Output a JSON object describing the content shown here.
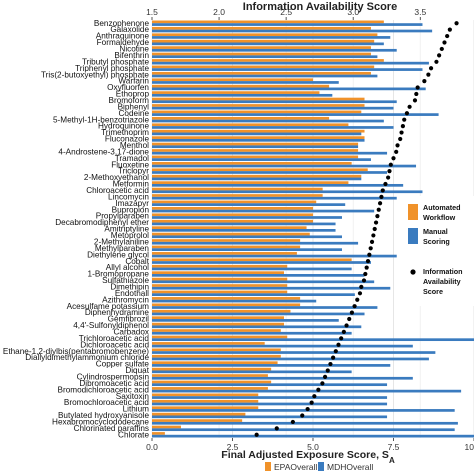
{
  "chart_data": {
    "type": "bar",
    "orientation": "horizontal",
    "title": "",
    "xlabel": "Final Adjusted Exposure Score, S",
    "xlabel_subscript": "A",
    "x2label": "Information Availability Score",
    "xlim": [
      0,
      10
    ],
    "x2lim": [
      1.5,
      3.9
    ],
    "xticks": [
      "0.0",
      "2.5",
      "5.0",
      "7.5",
      "10"
    ],
    "x2ticks": [
      "1.5",
      "2.0",
      "2.5",
      "3.0",
      "3.5"
    ],
    "grid": true,
    "categories": [
      "Benzophenone",
      "Galaxolide",
      "Anthraquinone",
      "Formaldehyde",
      "Nicotine",
      "Bifenthrin",
      "Tributyl phosphate",
      "Triphenyl phosphate",
      "Tris(2-butoxyethyl) phosphate",
      "Warfarin",
      "Oxyfluorfen",
      "Ethoprop",
      "Bromoform",
      "Biphenyl",
      "Codeine",
      "5-Methyl-1H-benzotriazole",
      "Hydroquinone",
      "Trimethoprim",
      "Fluconazole",
      "Menthol",
      "4-Androstene-3,17-dione",
      "Tramadol",
      "Fluoxetine",
      "Triclopyr",
      "2-Methoxyethanol",
      "Metformin",
      "Chloroacetic acid",
      "Lincomycin",
      "Imazapyr",
      "Bupropion",
      "Propylparaben",
      "Decabromodiphenyl ether",
      "Amitriptyline",
      "Metoprolol",
      "2-Methylaniline",
      "Methylparaben",
      "Diethylene glycol",
      "Cobalt",
      "Allyl alcohol",
      "1-Bromopropane",
      "Sulfathiazole",
      "Dimethipin",
      "Endothall",
      "Azithromycin",
      "Acesulfame potassium",
      "Diphenhydramine",
      "Gemfibrozil",
      "4,4'-Sulfonyldiphenol",
      "Carbadox",
      "Trichloroacetic acid",
      "Dichloroacetic acid",
      "Ethane-1,2-diylbis(pentabromobenzene)",
      "Diallyldimethylammonium chloride",
      "Copper sulfate",
      "Diquat",
      "Cylindrospermopsin",
      "Dibromoacetic acid",
      "Bromodichloroacetic acid",
      "Saxitoxin",
      "Bromochloroacetic acid",
      "Lithium",
      "Butylated hydroxyanisole",
      "Hexabromocyclododecane",
      "Chlorinated paraffins",
      "Chlorate"
    ],
    "series": [
      {
        "name": "EPAOverall",
        "color": "#f0922a",
        "values": [
          7.2,
          6.8,
          7.0,
          6.9,
          6.8,
          6.8,
          7.2,
          6.9,
          6.8,
          5.0,
          5.5,
          5.2,
          6.6,
          6.6,
          6.5,
          5.5,
          6.1,
          6.6,
          6.6,
          6.4,
          6.4,
          6.4,
          6.2,
          6.7,
          6.5,
          6.1,
          5.3,
          5.3,
          5.1,
          5.0,
          5.0,
          5.0,
          4.8,
          4.9,
          4.6,
          4.6,
          4.5,
          6.2,
          4.2,
          4.1,
          4.2,
          4.2,
          4.2,
          4.6,
          4.6,
          4.3,
          4.1,
          4.1,
          4.0,
          4.2,
          3.5,
          4.0,
          4.0,
          3.9,
          3.7,
          3.6,
          3.7,
          3.6,
          3.3,
          3.3,
          3.3,
          2.9,
          2.8,
          0.9,
          0.4
        ]
      },
      {
        "name": "MDHOverall",
        "color": "#3a7bbf",
        "values": [
          8.4,
          8.7,
          7.4,
          7.2,
          7.6,
          7.0,
          8.6,
          8.4,
          7.0,
          5.8,
          8.5,
          5.6,
          7.6,
          7.5,
          8.9,
          7.2,
          7.5,
          6.5,
          6.6,
          6.4,
          7.3,
          6.8,
          8.2,
          7.3,
          6.5,
          7.8,
          8.4,
          7.6,
          6.0,
          6.9,
          5.9,
          5.7,
          5.7,
          5.9,
          6.4,
          5.9,
          7.6,
          6.8,
          6.2,
          6.6,
          6.9,
          7.4,
          6.3,
          5.1,
          7.0,
          6.6,
          5.8,
          6.5,
          6.2,
          10.0,
          8.1,
          8.8,
          8.6,
          7.4,
          6.2,
          8.1,
          7.3,
          9.6,
          7.3,
          7.3,
          9.4,
          7.3,
          9.5,
          9.4,
          10.0
        ]
      }
    ],
    "scatter_series": {
      "name": "Information Availability Score",
      "color": "#000000",
      "values": [
        3.77,
        3.72,
        3.7,
        3.68,
        3.66,
        3.64,
        3.62,
        3.58,
        3.56,
        3.53,
        3.48,
        3.47,
        3.46,
        3.42,
        3.4,
        3.38,
        3.37,
        3.36,
        3.35,
        3.33,
        3.32,
        3.3,
        3.28,
        3.27,
        3.26,
        3.24,
        3.22,
        3.21,
        3.2,
        3.19,
        3.18,
        3.17,
        3.16,
        3.15,
        3.14,
        3.13,
        3.12,
        3.11,
        3.1,
        3.09,
        3.08,
        3.06,
        3.05,
        3.03,
        3.01,
        2.99,
        2.97,
        2.95,
        2.93,
        2.91,
        2.89,
        2.87,
        2.85,
        2.83,
        2.81,
        2.79,
        2.77,
        2.74,
        2.71,
        2.69,
        2.66,
        2.62,
        2.55,
        2.43,
        2.28
      ]
    },
    "legend": {
      "placement": "right",
      "items": [
        {
          "label": "Automated Workflow",
          "series": "EPAOverall"
        },
        {
          "label": "Manual Scoring",
          "series": "MDHOverall"
        },
        {
          "label": "Information Availability Score",
          "series": "Information Availability Score"
        }
      ]
    },
    "bottom_legend": [
      "EPAOverall",
      "MDHOverall"
    ]
  }
}
